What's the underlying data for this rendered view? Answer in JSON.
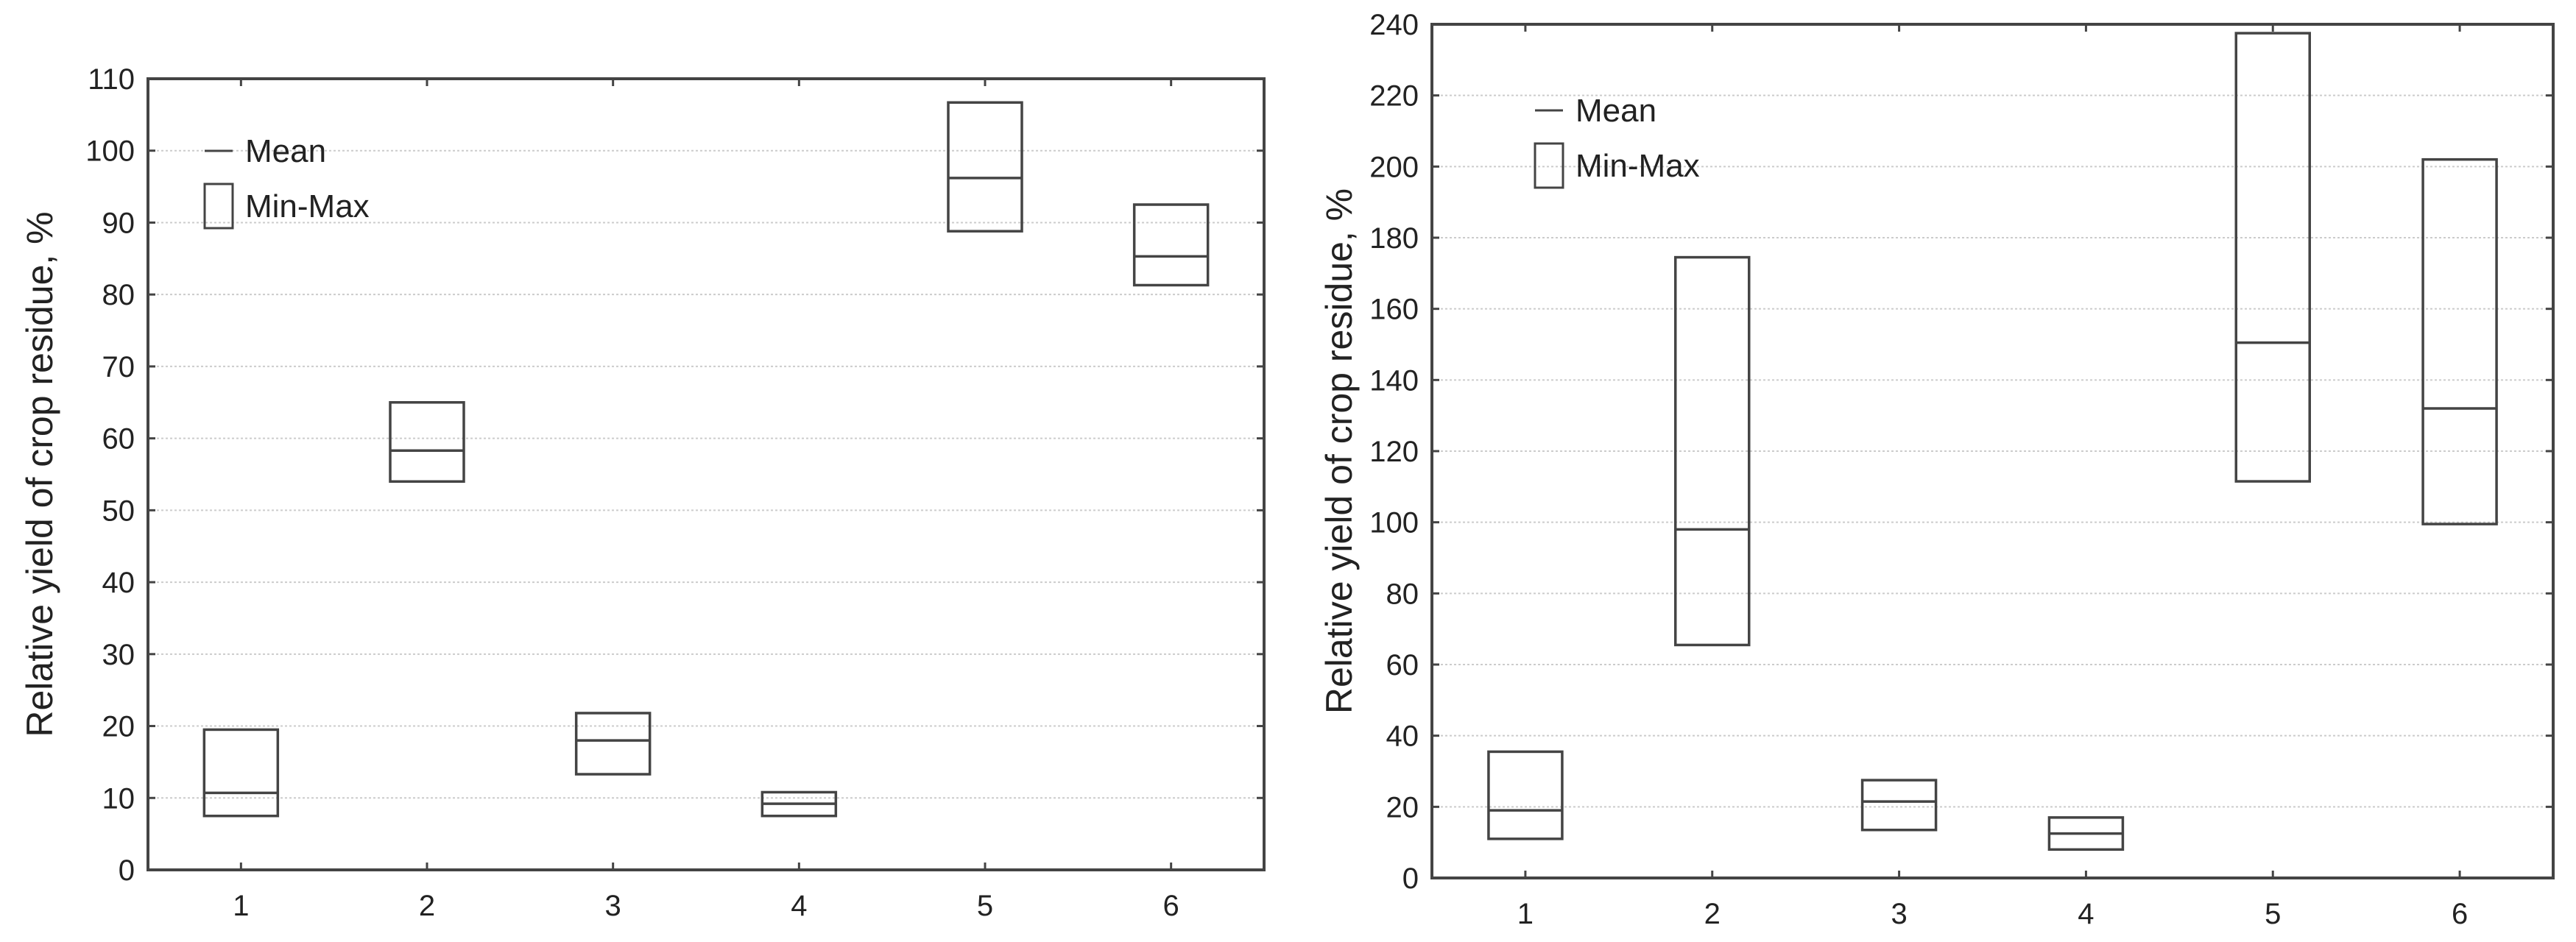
{
  "chart_data": [
    {
      "type": "box",
      "title": "",
      "xlabel": "",
      "ylabel": "Relative yield of crop residue, %",
      "ylim": [
        0,
        110
      ],
      "yticks": [
        0,
        10,
        20,
        30,
        40,
        50,
        60,
        70,
        80,
        90,
        100,
        110
      ],
      "grid": true,
      "legend": {
        "position": "top-left",
        "entries": [
          "Mean",
          "Min-Max"
        ]
      },
      "categories": [
        "1",
        "2",
        "3",
        "4",
        "5",
        "6"
      ],
      "series": [
        {
          "name": "Mean",
          "values": [
            10.7,
            58.3,
            18.0,
            9.2,
            96.2,
            85.3
          ]
        },
        {
          "name": "Min",
          "values": [
            7.5,
            54.0,
            13.3,
            7.5,
            88.8,
            81.3
          ]
        },
        {
          "name": "Max",
          "values": [
            19.5,
            65.0,
            21.8,
            10.8,
            106.7,
            92.5
          ]
        }
      ]
    },
    {
      "type": "box",
      "title": "",
      "xlabel": "",
      "ylabel": "Relative yield of crop residue, %",
      "ylim": [
        0,
        240
      ],
      "yticks": [
        0,
        20,
        40,
        60,
        80,
        100,
        120,
        140,
        160,
        180,
        200,
        220,
        240
      ],
      "grid": true,
      "legend": {
        "position": "top-left",
        "entries": [
          "Mean",
          "Min-Max"
        ]
      },
      "categories": [
        "1",
        "2",
        "3",
        "4",
        "5",
        "6"
      ],
      "series": [
        {
          "name": "Mean",
          "values": [
            19.0,
            98.0,
            21.5,
            12.5,
            150.5,
            132.0
          ]
        },
        {
          "name": "Min",
          "values": [
            11.0,
            65.5,
            13.5,
            8.0,
            111.5,
            99.5
          ]
        },
        {
          "name": "Max",
          "values": [
            35.5,
            174.5,
            27.5,
            17.0,
            237.5,
            202.0
          ]
        }
      ]
    }
  ]
}
